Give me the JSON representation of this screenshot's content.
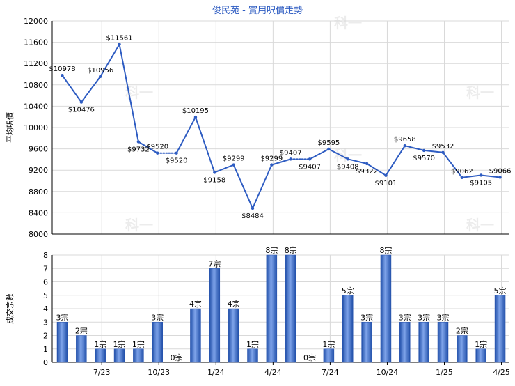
{
  "chart_data": [
    {
      "type": "line",
      "title": "俊民苑 - 實用呎價走勢",
      "ylabel": "平均呎價",
      "ylim": [
        8000,
        12000
      ],
      "yticks": [
        8000,
        8400,
        8800,
        9200,
        9600,
        10000,
        10400,
        10800,
        11200,
        11600,
        12000
      ],
      "grid": true,
      "value_label_prefix": "$",
      "line_color": "#2e5cc2",
      "values": [
        10978,
        10476,
        10956,
        11561,
        9732,
        9520,
        9520,
        10195,
        9158,
        9299,
        8484,
        9299,
        9407,
        9407,
        9595,
        9408,
        9322,
        9101,
        9658,
        9570,
        9532,
        9062,
        9105,
        9066
      ],
      "dashed_segments": [
        [
          5,
          6
        ],
        [
          12,
          13
        ]
      ]
    },
    {
      "type": "bar",
      "ylabel": "成交宗數",
      "ylim": [
        0,
        8
      ],
      "yticks": [
        0,
        1,
        2,
        3,
        4,
        5,
        6,
        7,
        8
      ],
      "grid": true,
      "value_label_suffix": "宗",
      "bar_color": "#3e6ecc",
      "values": [
        3,
        2,
        1,
        1,
        1,
        3,
        0,
        4,
        7,
        4,
        1,
        8,
        8,
        0,
        1,
        5,
        3,
        8,
        3,
        3,
        3,
        2,
        1,
        5
      ],
      "xtick_labels": [
        "7/23",
        "10/23",
        "1/24",
        "4/24",
        "7/24",
        "10/24",
        "1/25",
        "4/25"
      ],
      "xtick_every": 3,
      "xtick_offset": 2
    }
  ],
  "watermark": "科一",
  "colors": {
    "title": "#2e5cc2",
    "grid": "#d9d9d9",
    "axis": "#000000"
  }
}
